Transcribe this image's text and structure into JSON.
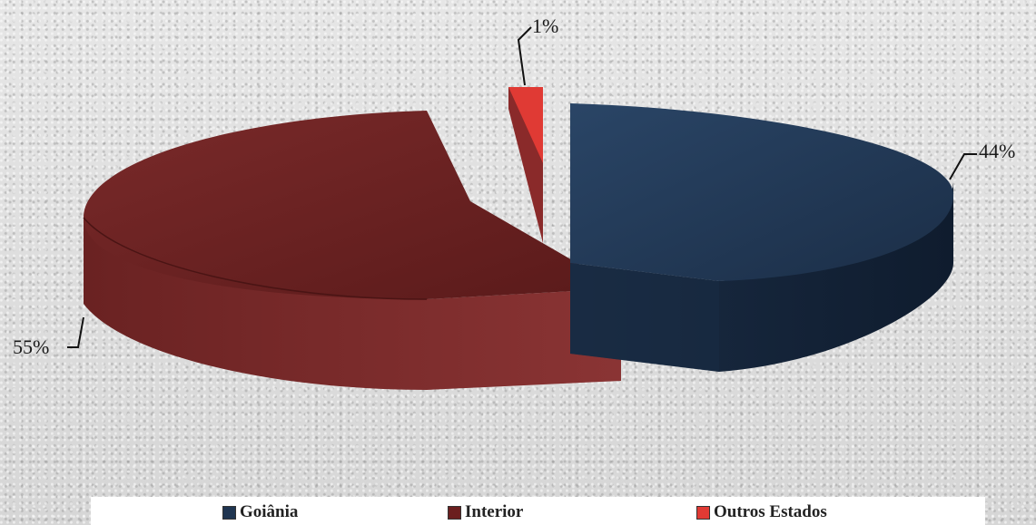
{
  "chart_data": {
    "type": "pie",
    "style": "3d-exploded",
    "labels": [
      "Goiânia",
      "Interior",
      "Outros Estados"
    ],
    "values": [
      44,
      55,
      1
    ],
    "value_labels": [
      "44%",
      "55%",
      "1%"
    ],
    "colors": [
      "#1f3551",
      "#6b1f1f",
      "#e03a34"
    ],
    "legend": "bottom"
  }
}
